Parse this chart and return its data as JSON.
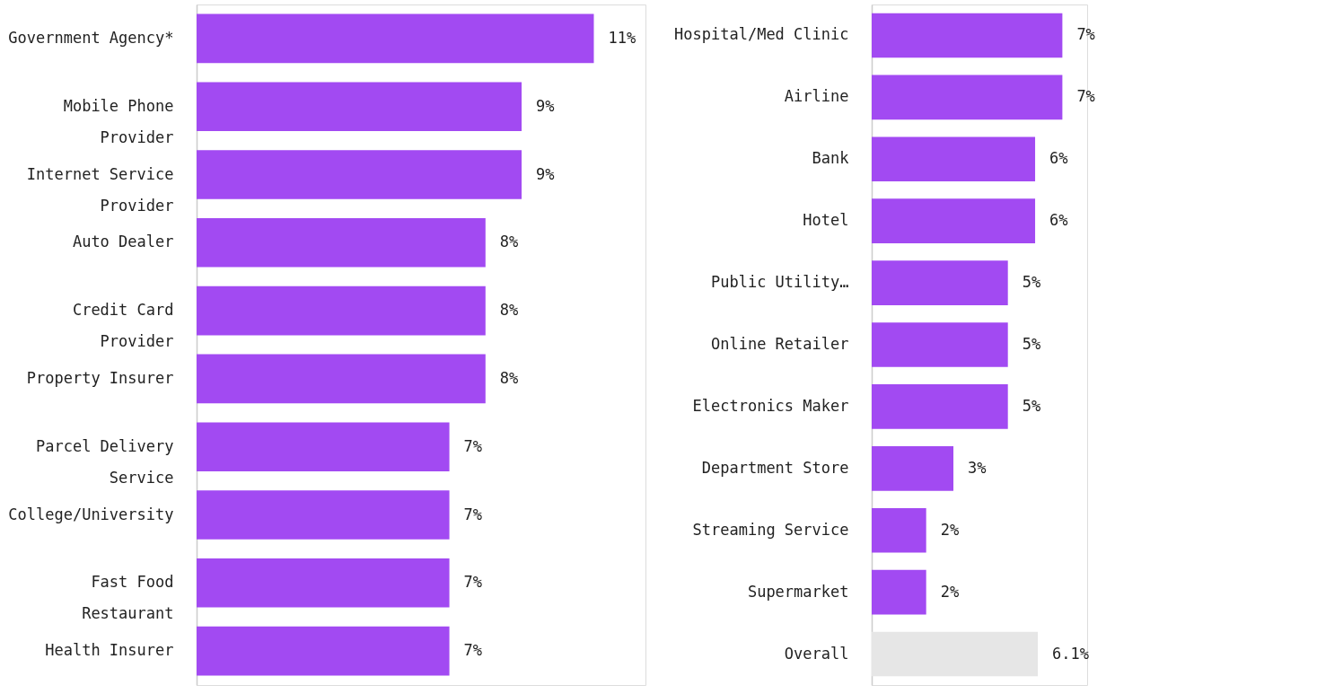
{
  "chart_data": [
    {
      "type": "bar",
      "orientation": "horizontal",
      "categories": [
        "Government Agency*",
        "Mobile Phone Provider",
        "Internet Service Provider",
        "Auto Dealer",
        "Credit Card Provider",
        "Property Insurer",
        "Parcel Delivery Service",
        "College/University",
        "Fast Food Restaurant",
        "Health Insurer"
      ],
      "values": [
        11,
        9,
        9,
        8,
        8,
        8,
        7,
        7,
        7,
        7
      ],
      "value_labels": [
        "11%",
        "9%",
        "9%",
        "8%",
        "8%",
        "8%",
        "7%",
        "7%",
        "7%",
        "7%"
      ],
      "colors": [
        "#a24af2",
        "#a24af2",
        "#a24af2",
        "#a24af2",
        "#a24af2",
        "#a24af2",
        "#a24af2",
        "#a24af2",
        "#a24af2",
        "#a24af2"
      ]
    },
    {
      "type": "bar",
      "orientation": "horizontal",
      "categories": [
        "Hospital/Med Clinic",
        "Airline",
        "Bank",
        "Hotel",
        "Public Utility…",
        "Online Retailer",
        "Electronics Maker",
        "Department Store",
        "Streaming Service",
        "Supermarket",
        "Overall"
      ],
      "values": [
        7,
        7,
        6,
        6,
        5,
        5,
        5,
        3,
        2,
        2,
        6.1
      ],
      "value_labels": [
        "7%",
        "7%",
        "6%",
        "6%",
        "5%",
        "5%",
        "5%",
        "3%",
        "2%",
        "2%",
        "6.1%"
      ],
      "colors": [
        "#a24af2",
        "#a24af2",
        "#a24af2",
        "#a24af2",
        "#a24af2",
        "#a24af2",
        "#a24af2",
        "#a24af2",
        "#a24af2",
        "#a24af2",
        "#e6e6e6"
      ]
    }
  ]
}
